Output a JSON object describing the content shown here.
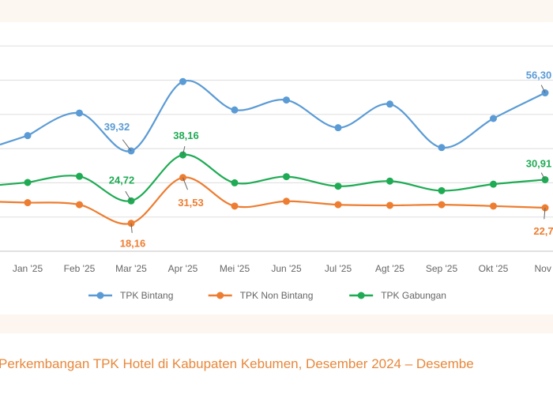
{
  "chart_data": {
    "type": "line",
    "title": "",
    "caption": "Perkembangan TPK Hotel di Kabupaten Kebumen, Desember 2024 – Desembe",
    "xlabel": "",
    "ylabel": "",
    "categories": [
      "Jan '25",
      "Feb '25",
      "Mar '25",
      "Apr '25",
      "Mei '25",
      "Jun '25",
      "Jul '25",
      "Agt '25",
      "Sep '25",
      "Okt '25",
      "Nov '"
    ],
    "ylim": [
      10,
      70
    ],
    "grid": true,
    "legend_position": "bottom",
    "series": [
      {
        "name": "TPK Bintang",
        "color": "#5b9bd5",
        "values": [
          43.8,
          50.4,
          39.32,
          59.6,
          51.3,
          54.2,
          46.1,
          53.0,
          40.3,
          48.8,
          56.3
        ]
      },
      {
        "name": "TPK Non Bintang",
        "color": "#ed7d31",
        "values": [
          24.2,
          23.6,
          18.16,
          31.53,
          23.2,
          24.6,
          23.6,
          23.4,
          23.6,
          23.2,
          22.7
        ]
      },
      {
        "name": "TPK Gabungan",
        "color": "#1fab54",
        "values": [
          30.1,
          31.9,
          24.72,
          38.16,
          30.0,
          31.8,
          29.0,
          30.5,
          27.7,
          29.6,
          30.91
        ]
      }
    ],
    "annotations": [
      {
        "series": 0,
        "index": 2,
        "text": "39,32"
      },
      {
        "series": 0,
        "index": 10,
        "text": "56,30"
      },
      {
        "series": 2,
        "index": 2,
        "text": "24,72"
      },
      {
        "series": 2,
        "index": 3,
        "text": "38,16"
      },
      {
        "series": 2,
        "index": 10,
        "text": "30,91"
      },
      {
        "series": 1,
        "index": 2,
        "text": "18,16"
      },
      {
        "series": 1,
        "index": 3,
        "text": "31,53"
      },
      {
        "series": 1,
        "index": 10,
        "text": "22,7"
      }
    ]
  }
}
